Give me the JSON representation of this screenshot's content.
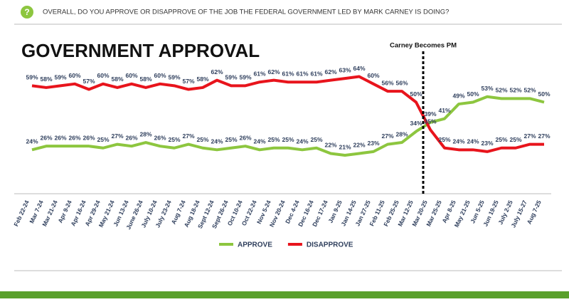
{
  "question": "OVERALL, DO YOU APPROVE OR DISAPPROVE OF THE JOB THE FEDERAL GOVERNMENT LED BY MARK CARNEY IS DOING?",
  "chart_data": {
    "type": "line",
    "title": "GOVERNMENT APPROVAL",
    "annotation": "Carney Becomes PM",
    "categories": [
      "Feb 22-24",
      "Mar 7-24",
      "Mar 21-24",
      "Apr 9-24",
      "Apr 16-24",
      "Apr 29-24",
      "May 21-24",
      "Jun 13-24",
      "June 26-24",
      "July 10-24",
      "July 23-24",
      "Aug 7-24",
      "Aug 18-24",
      "Sept 12-24",
      "Sept 26-24",
      "Oct 10-24",
      "Oct 22-24",
      "Nov 5-24",
      "Nov 20-24",
      "Dec 4-24",
      "Dec 16-24",
      "Dec 17-24",
      "Jan 9-25",
      "Jan 14-25",
      "Jan 27-25",
      "Feb 11-25",
      "Feb 25-25",
      "Mar 12-25",
      "Mar 20-25",
      "Mar 25-25",
      "Apr 8-25",
      "May 21-25",
      "Jun 5-25",
      "Jun 19-25",
      "July 2-25",
      "July 15-27",
      "Aug 7-25"
    ],
    "series": [
      {
        "name": "APPROVE",
        "color": "#8dc63f",
        "values": [
          24,
          26,
          26,
          26,
          26,
          25,
          27,
          26,
          28,
          26,
          25,
          27,
          25,
          24,
          25,
          26,
          24,
          25,
          25,
          24,
          25,
          22,
          21,
          22,
          23,
          27,
          28,
          34,
          39,
          41,
          49,
          50,
          53,
          52,
          52,
          52,
          50
        ],
        "value_labels": [
          "24%",
          "26%",
          "26%",
          "26%",
          "26%",
          "25%",
          "27%",
          "26%",
          "28%",
          "26%",
          "25%",
          "27%",
          "25%",
          "24%",
          "25%",
          "26%",
          "24%",
          "25%",
          "25%",
          "24%",
          "25%",
          "22%",
          "21%",
          "22%",
          "23%",
          "27%",
          "28%",
          "34%",
          "39%",
          "41%",
          "49%",
          "50%",
          "53%",
          "52%",
          "52%",
          "52%",
          "50%"
        ]
      },
      {
        "name": "DISAPPROVE",
        "color": "#e8141c",
        "values": [
          59,
          58,
          59,
          60,
          57,
          60,
          58,
          60,
          58,
          60,
          59,
          57,
          58,
          62,
          59,
          59,
          61,
          62,
          61,
          61,
          61,
          62,
          63,
          64,
          60,
          56,
          56,
          50,
          35,
          25,
          24,
          24,
          23,
          25,
          25,
          27,
          27
        ],
        "value_labels": [
          "59%",
          "58%",
          "59%",
          "60%",
          "57%",
          "60%",
          "58%",
          "60%",
          "58%",
          "60%",
          "59%",
          "57%",
          "58%",
          "62%",
          "59%",
          "59%",
          "61%",
          "62%",
          "61%",
          "61%",
          "61%",
          "62%",
          "63%",
          "64%",
          "60%",
          "56%",
          "56%",
          "50%",
          "35%",
          "25%",
          "24%",
          "24%",
          "23%",
          "25%",
          "25%",
          "27%",
          "27%"
        ]
      }
    ]
  }
}
